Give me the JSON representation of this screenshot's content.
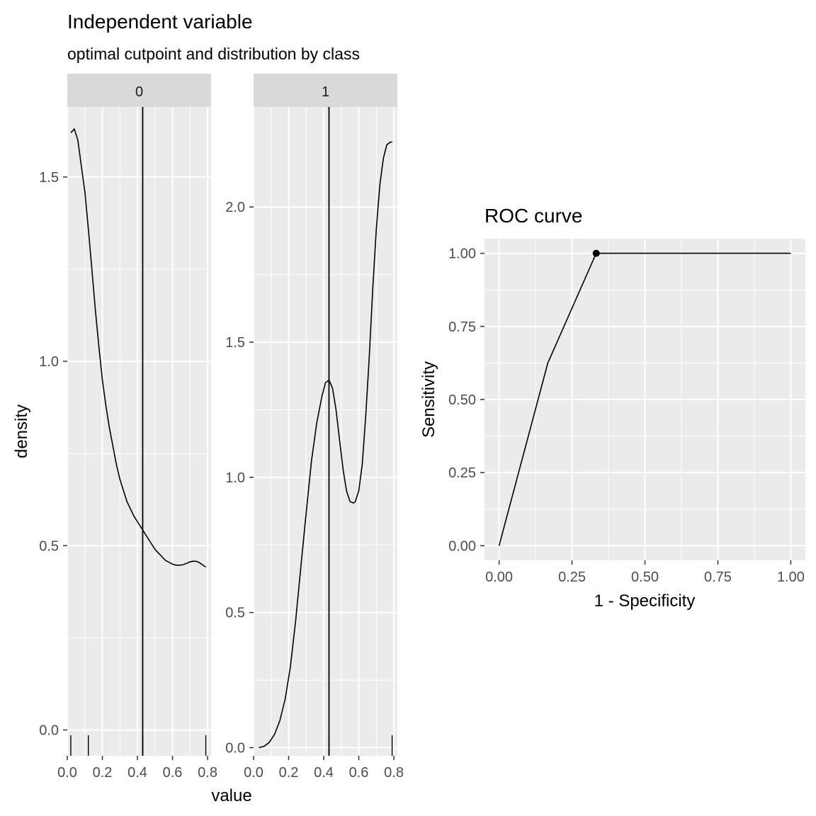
{
  "chart_data": [
    {
      "type": "line",
      "title": "Independent variable",
      "subtitle": "optimal cutpoint and distribution by class",
      "xlabel": "value",
      "ylabel": "density",
      "cutpoint": 0.43,
      "facets": [
        {
          "label": "0",
          "xlim": [
            0.0,
            0.82
          ],
          "ylim": [
            -0.07,
            1.69
          ],
          "x_ticks": [
            "0.0",
            "0.2",
            "0.4",
            "0.6",
            "0.8"
          ],
          "x_tick_values": [
            0.0,
            0.2,
            0.4,
            0.6,
            0.8
          ],
          "y_ticks": [
            "0.0",
            "0.5",
            "1.0",
            "1.5"
          ],
          "y_tick_values": [
            0.0,
            0.5,
            1.0,
            1.5
          ],
          "density": {
            "x": [
              0.02,
              0.04,
              0.06,
              0.08,
              0.1,
              0.12,
              0.14,
              0.16,
              0.18,
              0.2,
              0.22,
              0.24,
              0.26,
              0.28,
              0.3,
              0.32,
              0.34,
              0.36,
              0.38,
              0.4,
              0.42,
              0.44,
              0.46,
              0.48,
              0.5,
              0.52,
              0.54,
              0.56,
              0.58,
              0.6,
              0.62,
              0.64,
              0.66,
              0.68,
              0.7,
              0.72,
              0.74,
              0.76,
              0.78,
              0.79
            ],
            "y": [
              1.62,
              1.63,
              1.6,
              1.53,
              1.46,
              1.36,
              1.25,
              1.14,
              1.04,
              0.95,
              0.88,
              0.82,
              0.77,
              0.72,
              0.68,
              0.65,
              0.62,
              0.6,
              0.58,
              0.565,
              0.55,
              0.535,
              0.52,
              0.505,
              0.49,
              0.48,
              0.47,
              0.46,
              0.455,
              0.45,
              0.447,
              0.447,
              0.448,
              0.452,
              0.456,
              0.458,
              0.457,
              0.452,
              0.445,
              0.442
            ]
          },
          "rug": [
            0.02,
            0.12,
            0.43,
            0.79
          ]
        },
        {
          "label": "1",
          "xlim": [
            0.0,
            0.82
          ],
          "ylim": [
            -0.03,
            2.37
          ],
          "x_ticks": [
            "0.0",
            "0.2",
            "0.4",
            "0.6",
            "0.8"
          ],
          "x_tick_values": [
            0.0,
            0.2,
            0.4,
            0.6,
            0.8
          ],
          "y_ticks": [
            "0.0",
            "0.5",
            "1.0",
            "1.5",
            "2.0"
          ],
          "y_tick_values": [
            0.0,
            0.5,
            1.0,
            1.5,
            2.0
          ],
          "density": {
            "x": [
              0.03,
              0.06,
              0.09,
              0.12,
              0.15,
              0.18,
              0.21,
              0.24,
              0.27,
              0.3,
              0.33,
              0.36,
              0.39,
              0.41,
              0.43,
              0.45,
              0.47,
              0.49,
              0.51,
              0.53,
              0.55,
              0.57,
              0.58,
              0.6,
              0.62,
              0.64,
              0.66,
              0.68,
              0.7,
              0.72,
              0.74,
              0.76,
              0.78,
              0.79
            ],
            "y": [
              0.0,
              0.005,
              0.02,
              0.05,
              0.1,
              0.18,
              0.3,
              0.47,
              0.67,
              0.87,
              1.06,
              1.2,
              1.3,
              1.35,
              1.36,
              1.33,
              1.25,
              1.14,
              1.03,
              0.95,
              0.91,
              0.905,
              0.91,
              0.95,
              1.05,
              1.23,
              1.45,
              1.7,
              1.92,
              2.08,
              2.18,
              2.23,
              2.24,
              2.24
            ]
          },
          "rug": [
            0.43,
            0.79
          ]
        }
      ]
    },
    {
      "type": "line",
      "title": "ROC curve",
      "xlabel": "1 - Specificity",
      "ylabel": "Sensitivity",
      "xlim": [
        -0.05,
        1.05
      ],
      "ylim": [
        -0.05,
        1.05
      ],
      "x_ticks": [
        "0.00",
        "0.25",
        "0.50",
        "0.75",
        "1.00"
      ],
      "x_tick_values": [
        0.0,
        0.25,
        0.5,
        0.75,
        1.0
      ],
      "y_ticks": [
        "0.00",
        "0.25",
        "0.50",
        "0.75",
        "1.00"
      ],
      "y_tick_values": [
        0.0,
        0.25,
        0.5,
        0.75,
        1.0
      ],
      "x": [
        0.0,
        0.167,
        0.333,
        1.0
      ],
      "y": [
        0.0,
        0.625,
        1.0,
        1.0
      ],
      "optimal_point": {
        "x": 0.333,
        "y": 1.0
      }
    }
  ]
}
